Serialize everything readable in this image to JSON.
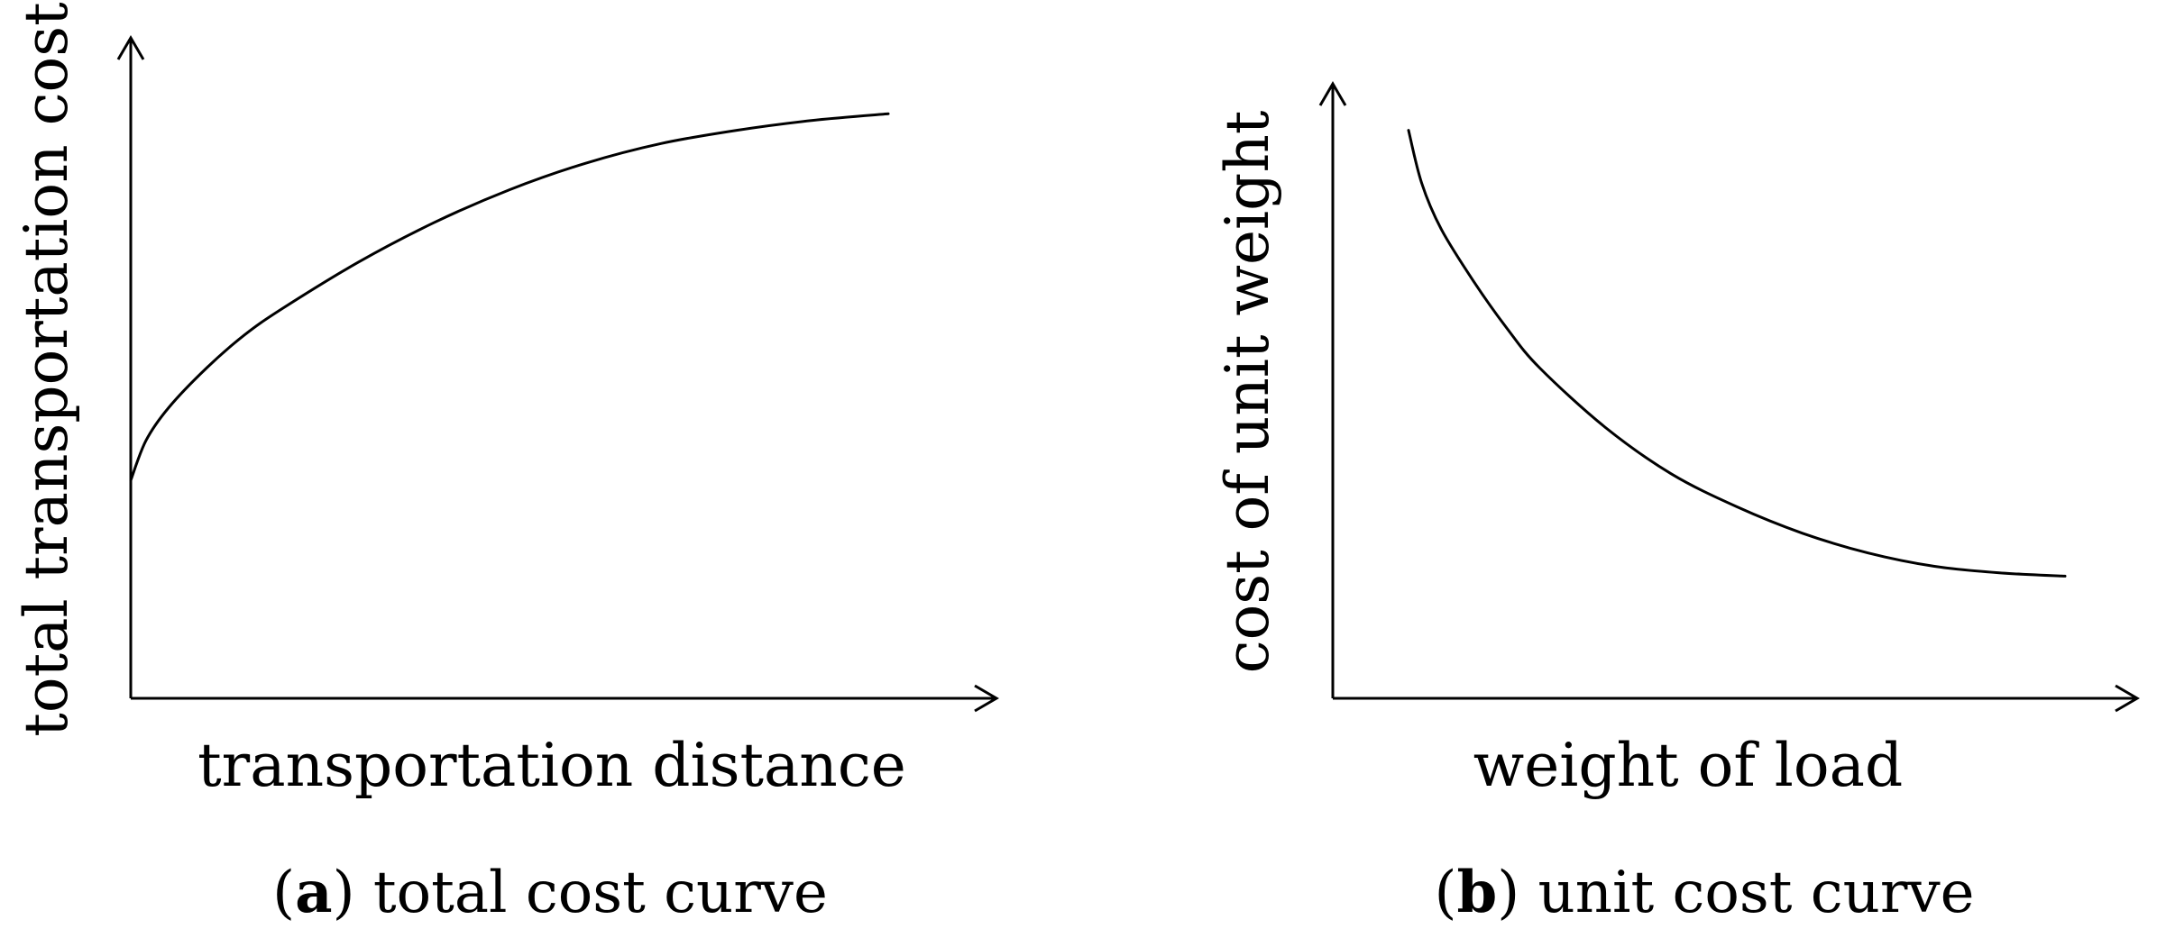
{
  "chart_data": [
    {
      "type": "line",
      "panel": "a",
      "caption_letter": "a",
      "caption_text": "total cost curve",
      "xlabel": "transportation distance",
      "ylabel": "total transportation cost",
      "grid": false,
      "shape": "concave-increasing",
      "series": [
        {
          "x": [
            0,
            0.02,
            0.05,
            0.1,
            0.15,
            0.2,
            0.3,
            0.4,
            0.5,
            0.6,
            0.7,
            0.8,
            0.9,
            1.0
          ],
          "y": [
            0.33,
            0.39,
            0.44,
            0.5,
            0.55,
            0.59,
            0.66,
            0.72,
            0.77,
            0.81,
            0.84,
            0.86,
            0.875,
            0.885
          ]
        }
      ]
    },
    {
      "type": "line",
      "panel": "b",
      "caption_letter": "b",
      "caption_text": "unit cost curve",
      "xlabel": "weight of load",
      "ylabel": "cost of unit weight",
      "grid": false,
      "shape": "convex-decreasing",
      "series": [
        {
          "x": [
            0,
            0.02,
            0.05,
            0.1,
            0.15,
            0.2,
            0.3,
            0.4,
            0.5,
            0.6,
            0.7,
            0.8,
            0.9,
            1.0
          ],
          "y": [
            0.86,
            0.78,
            0.71,
            0.63,
            0.56,
            0.5,
            0.41,
            0.34,
            0.29,
            0.25,
            0.22,
            0.2,
            0.19,
            0.185
          ]
        }
      ]
    }
  ]
}
